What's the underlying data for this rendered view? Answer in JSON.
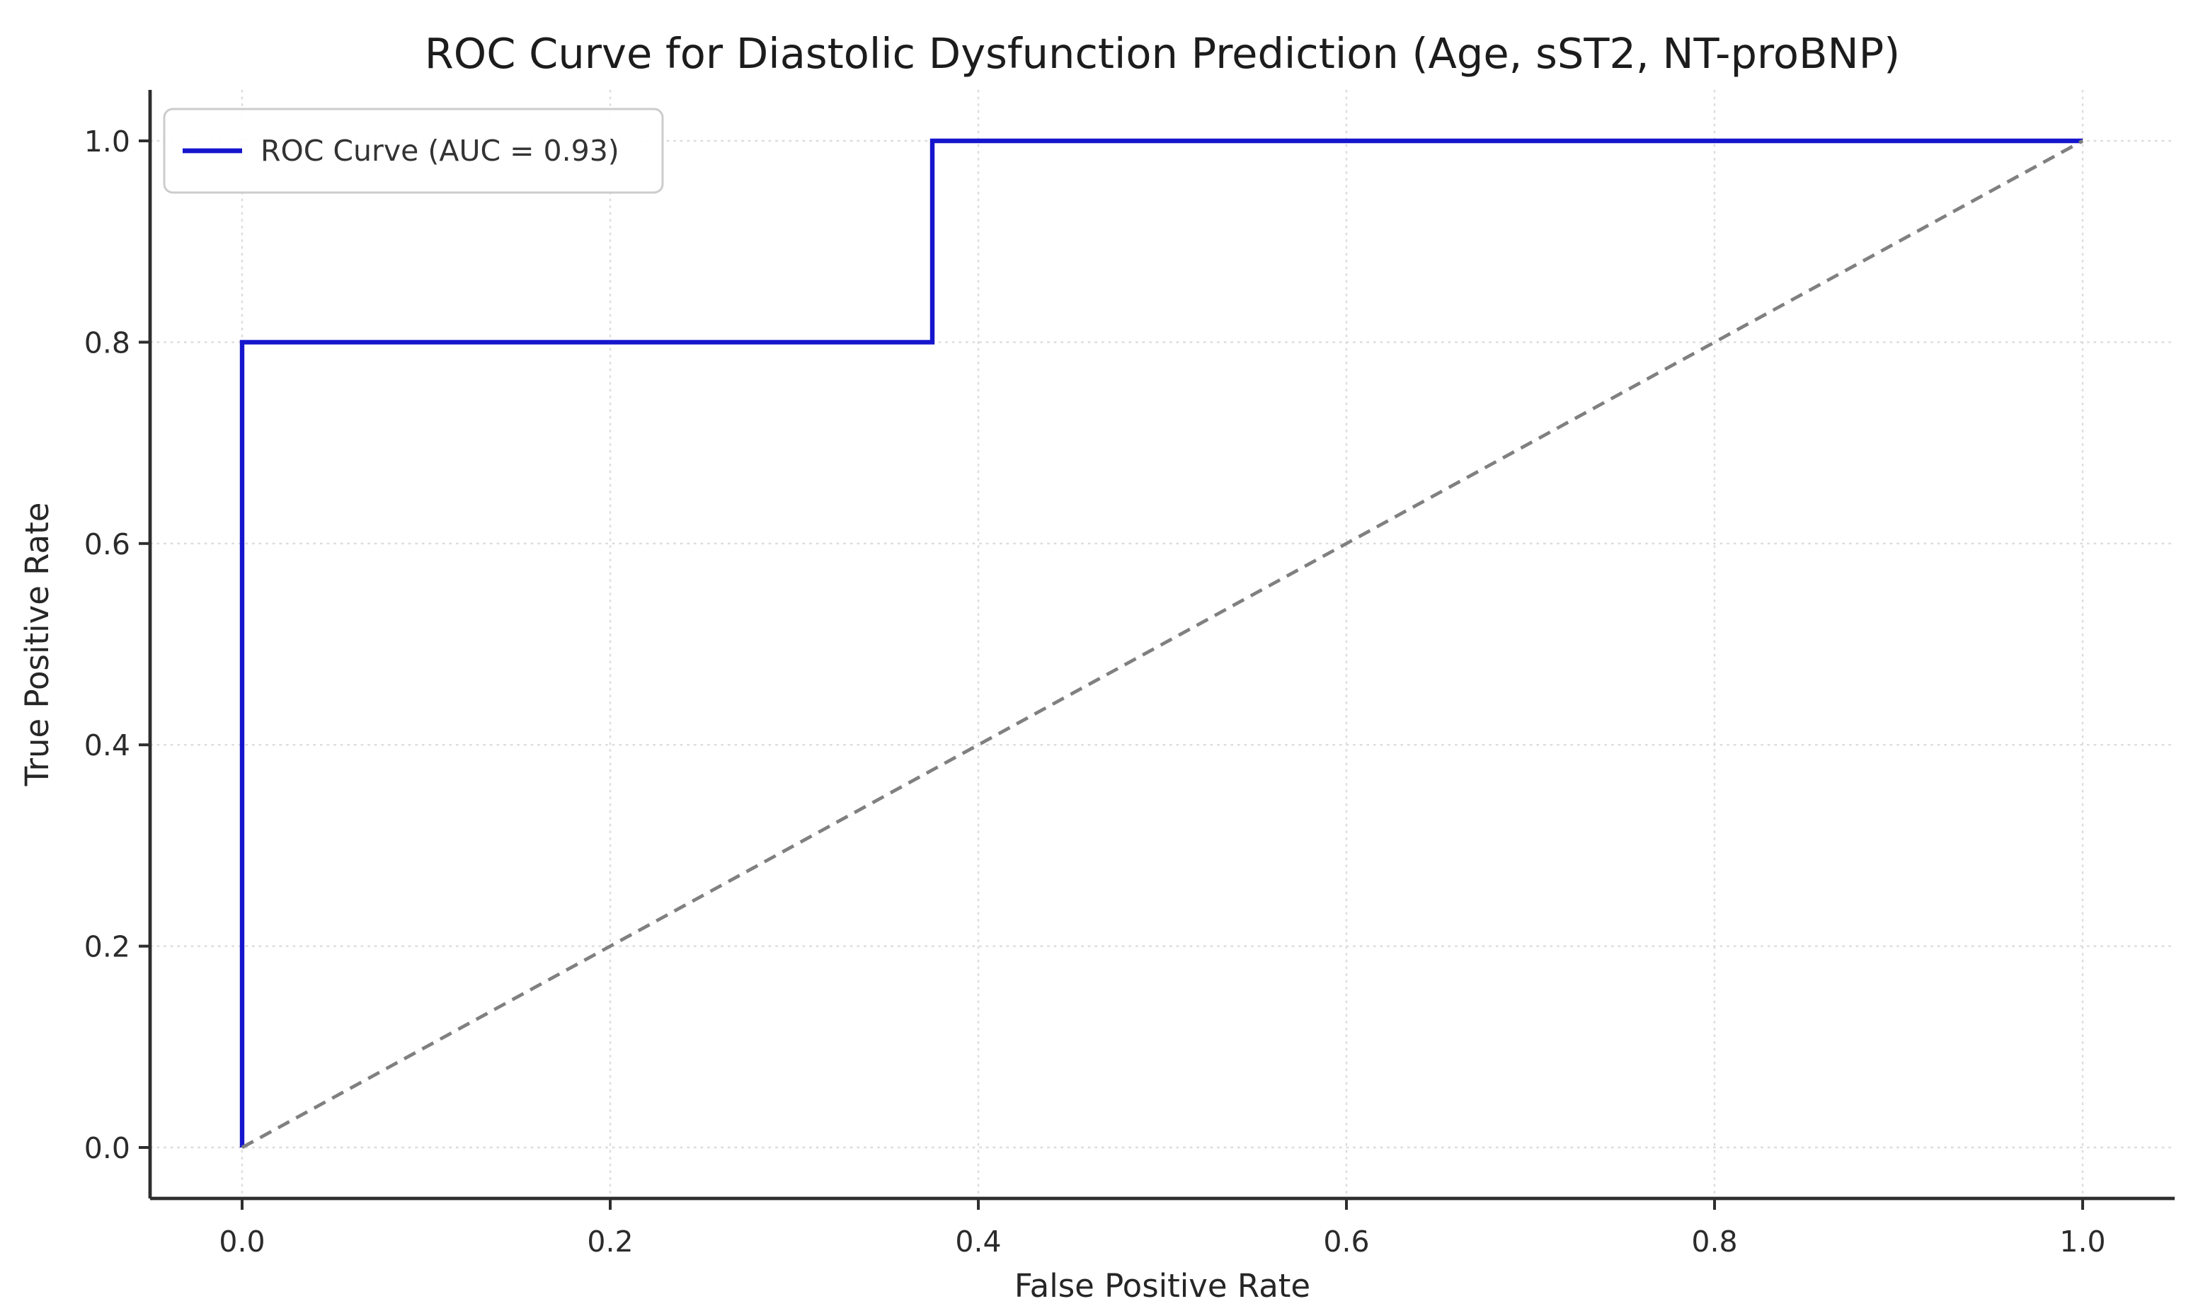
{
  "chart_data": {
    "type": "line",
    "title": "ROC Curve for Diastolic Dysfunction Prediction (Age, sST2, NT-proBNP)",
    "xlabel": "False Positive Rate",
    "ylabel": "True Positive Rate",
    "xlim": [
      0.0,
      1.0
    ],
    "ylim": [
      0.0,
      1.0
    ],
    "x_ticks": [
      0.0,
      0.2,
      0.4,
      0.6,
      0.8,
      1.0
    ],
    "x_tick_labels": [
      "0.0",
      "0.2",
      "0.4",
      "0.6",
      "0.8",
      "1.0"
    ],
    "y_ticks": [
      0.0,
      0.2,
      0.4,
      0.6,
      0.8,
      1.0
    ],
    "y_tick_labels": [
      "0.0",
      "0.2",
      "0.4",
      "0.6",
      "0.8",
      "1.0"
    ],
    "grid": true,
    "grid_style": "dotted",
    "auc": "0.93",
    "series": [
      {
        "name": "roc-curve",
        "label": "ROC Curve (AUC = 0.93)",
        "color": "#1515cd",
        "style": "solid",
        "width": 3.2,
        "x": [
          0.0,
          0.0,
          0.375,
          0.375,
          1.0
        ],
        "y": [
          0.0,
          0.8,
          0.8,
          1.0,
          1.0
        ]
      },
      {
        "name": "chance-diagonal",
        "label": "",
        "color": "#808080",
        "style": "dashed",
        "width": 2.4,
        "x": [
          0.0,
          1.0
        ],
        "y": [
          0.0,
          1.0
        ]
      }
    ],
    "legend": {
      "position": "upper left",
      "entries": [
        {
          "label": "ROC Curve (AUC = 0.93)",
          "color": "#1515cd"
        }
      ]
    }
  },
  "style": {
    "background": "#ffffff",
    "grid_color": "#dcdcdc",
    "spine_color": "#2e2e2e",
    "tick_color": "#2e2e2e",
    "legend_border_color": "#cccccc",
    "legend_fill_color": "#ffffff"
  }
}
